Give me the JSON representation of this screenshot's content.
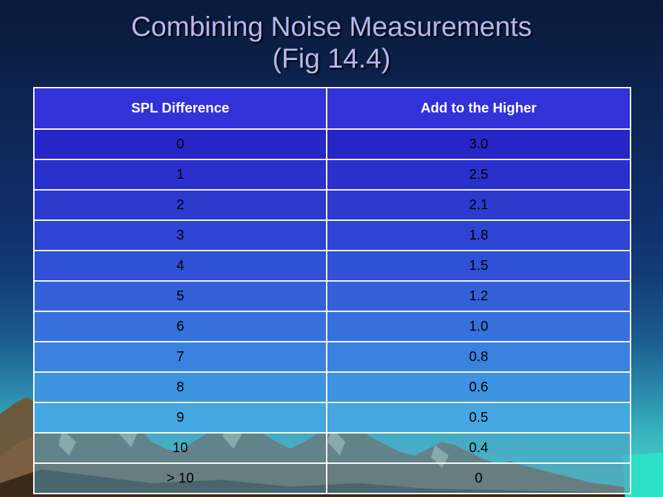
{
  "title": {
    "line1": "Combining Noise Measurements",
    "line2": "(Fig 14.4)"
  },
  "table": {
    "headers": [
      "SPL Difference",
      "Add to the Higher"
    ],
    "rows": [
      [
        "0",
        "3.0"
      ],
      [
        "1",
        "2.5"
      ],
      [
        "2",
        "2.1"
      ],
      [
        "3",
        "1.8"
      ],
      [
        "4",
        "1.5"
      ],
      [
        "5",
        "1.2"
      ],
      [
        "6",
        "1.0"
      ],
      [
        "7",
        "0.8"
      ],
      [
        "8",
        "0.6"
      ],
      [
        "9",
        "0.5"
      ],
      [
        "10",
        "0.4"
      ],
      [
        "> 10",
        "0"
      ]
    ]
  },
  "colors": {
    "header_bg": "#3232d8",
    "row_colors": [
      "#2626c8",
      "#2a30cc",
      "#2c3ad0",
      "#2e44d4",
      "#3050d6",
      "#3460da",
      "#3670dc",
      "#3a82de",
      "#3e94e0",
      "#46a6e2",
      "rgba(80,160,200,0.55)",
      "rgba(90,150,180,0.55)"
    ]
  }
}
